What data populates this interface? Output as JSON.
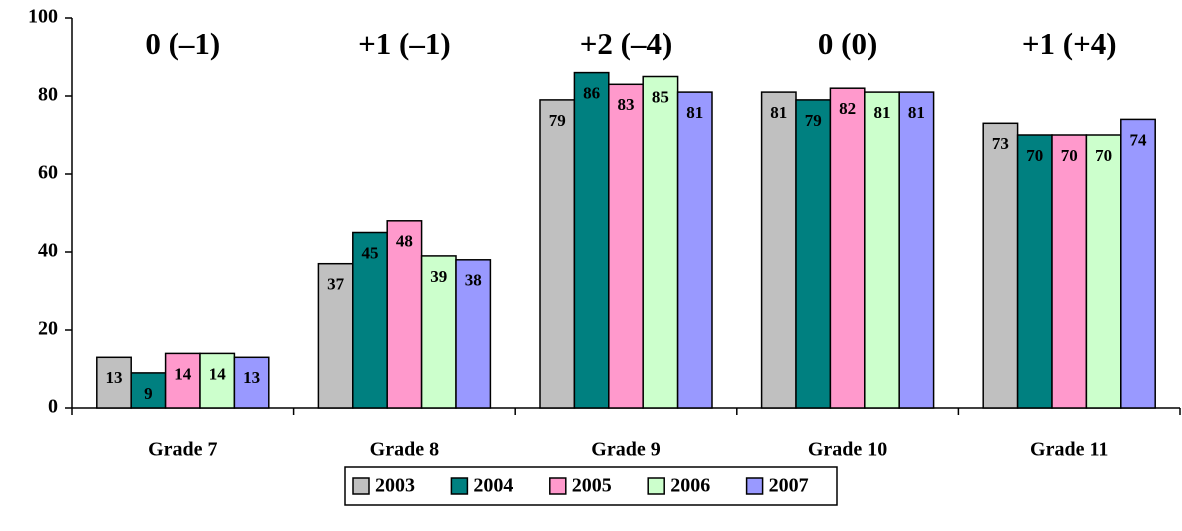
{
  "chart_data": {
    "type": "bar",
    "categories": [
      "Grade 7",
      "Grade 8",
      "Grade 9",
      "Grade 10",
      "Grade 11"
    ],
    "annotations": [
      "0 (–1)",
      "+1 (–1)",
      "+2 (–4)",
      "0 (0)",
      "+1 (+4)"
    ],
    "series": [
      {
        "name": "2003",
        "color": "#c0c0c0",
        "values": [
          13,
          37,
          79,
          81,
          73
        ]
      },
      {
        "name": "2004",
        "color": "#008080",
        "values": [
          9,
          45,
          86,
          79,
          70
        ]
      },
      {
        "name": "2005",
        "color": "#ff99cc",
        "values": [
          14,
          48,
          83,
          82,
          70
        ]
      },
      {
        "name": "2006",
        "color": "#ccffcc",
        "values": [
          14,
          39,
          85,
          81,
          70
        ]
      },
      {
        "name": "2007",
        "color": "#9999ff",
        "values": [
          13,
          38,
          81,
          81,
          74
        ]
      }
    ],
    "ylim": [
      0,
      100
    ],
    "yticks": [
      0,
      20,
      40,
      60,
      80,
      100
    ],
    "grid": false,
    "legend": "bottom"
  }
}
